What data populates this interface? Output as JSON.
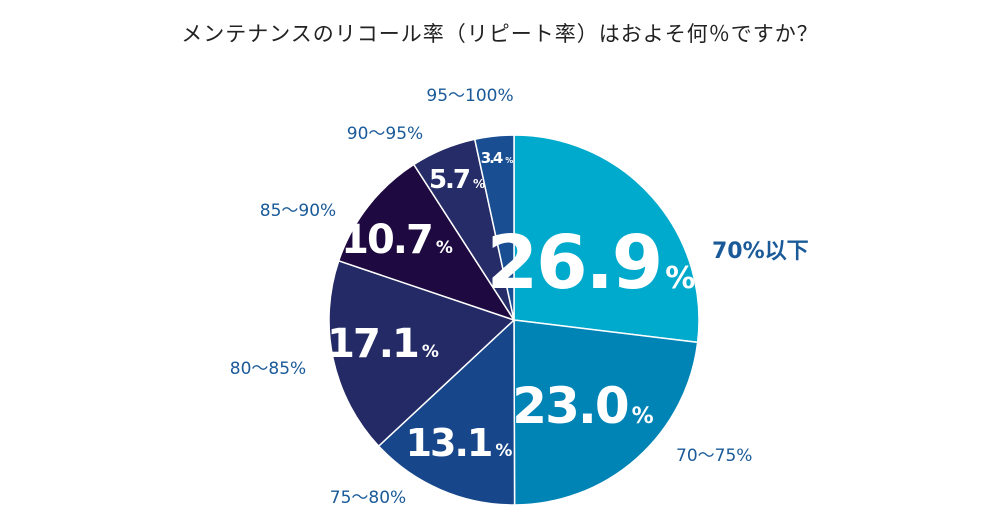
{
  "chart_data": {
    "type": "pie",
    "title": "メンテナンスのリコール率（リピート率）はおよそ何％ですか？",
    "unit": "%",
    "slices": [
      {
        "label": "70%以下",
        "value": 26.9,
        "color": "#00aacc"
      },
      {
        "label": "70〜75%",
        "value": 23.0,
        "color": "#0083b5"
      },
      {
        "label": "75〜80%",
        "value": 13.1,
        "color": "#17478a"
      },
      {
        "label": "80〜85%",
        "value": 17.1,
        "color": "#242a66"
      },
      {
        "label": "85〜90%",
        "value": 10.7,
        "color": "#1e0a40"
      },
      {
        "label": "90〜95%",
        "value": 5.7,
        "color": "#262c68"
      },
      {
        "label": "95〜100%",
        "value": 3.4,
        "color": "#1a4e93"
      }
    ]
  }
}
